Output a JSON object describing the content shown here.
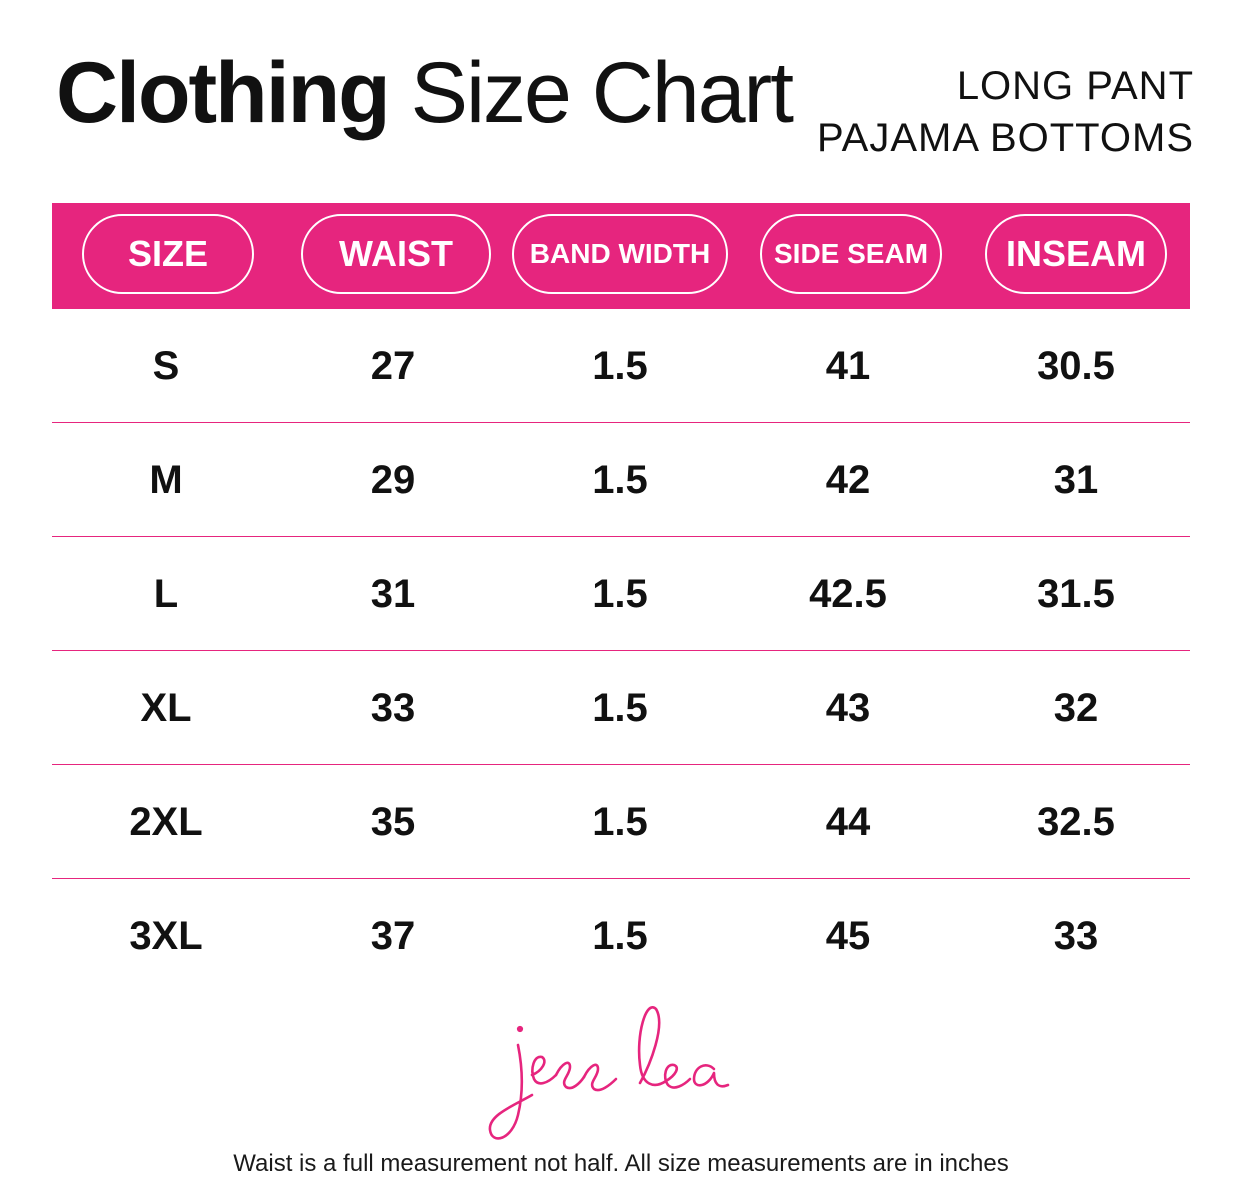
{
  "title": {
    "bold": "Clothing",
    "light": "Size Chart"
  },
  "subtitle": {
    "line1": "LONG PANT",
    "line2": "PAJAMA BOTTOMS"
  },
  "accent_color": "#e6257e",
  "headers": [
    "SIZE",
    "WAIST",
    "BAND WIDTH",
    "SIDE SEAM",
    "INSEAM"
  ],
  "rows": [
    [
      "S",
      "27",
      "1.5",
      "41",
      "30.5"
    ],
    [
      "M",
      "29",
      "1.5",
      "42",
      "31"
    ],
    [
      "L",
      "31",
      "1.5",
      "42.5",
      "31.5"
    ],
    [
      "XL",
      "33",
      "1.5",
      "43",
      "32"
    ],
    [
      "2XL",
      "35",
      "1.5",
      "44",
      "32.5"
    ],
    [
      "3XL",
      "37",
      "1.5",
      "45",
      "33"
    ]
  ],
  "signature": "jess lea",
  "footnote": "Waist is a full measurement not half. All size measurements are in inches"
}
